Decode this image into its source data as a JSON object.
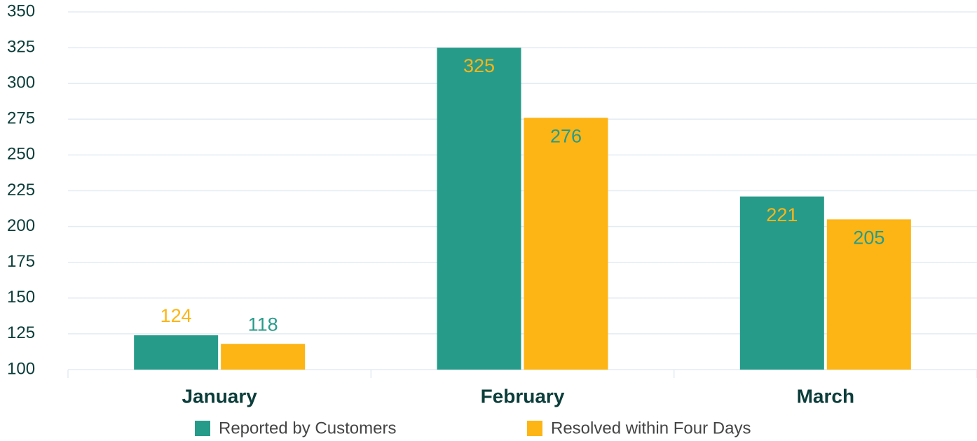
{
  "chart_data": {
    "type": "bar",
    "categories": [
      "January",
      "February",
      "March"
    ],
    "series": [
      {
        "name": "Reported by Customers",
        "color": "#279b8a",
        "values": [
          124,
          325,
          221
        ]
      },
      {
        "name": "Resolved within Four Days",
        "color": "#fdb515",
        "values": [
          118,
          276,
          205
        ]
      }
    ],
    "ylim": [
      100,
      350
    ],
    "yticks": [
      100,
      125,
      150,
      175,
      200,
      225,
      250,
      275,
      300,
      325,
      350
    ],
    "grid": true,
    "legend": "bottom"
  }
}
